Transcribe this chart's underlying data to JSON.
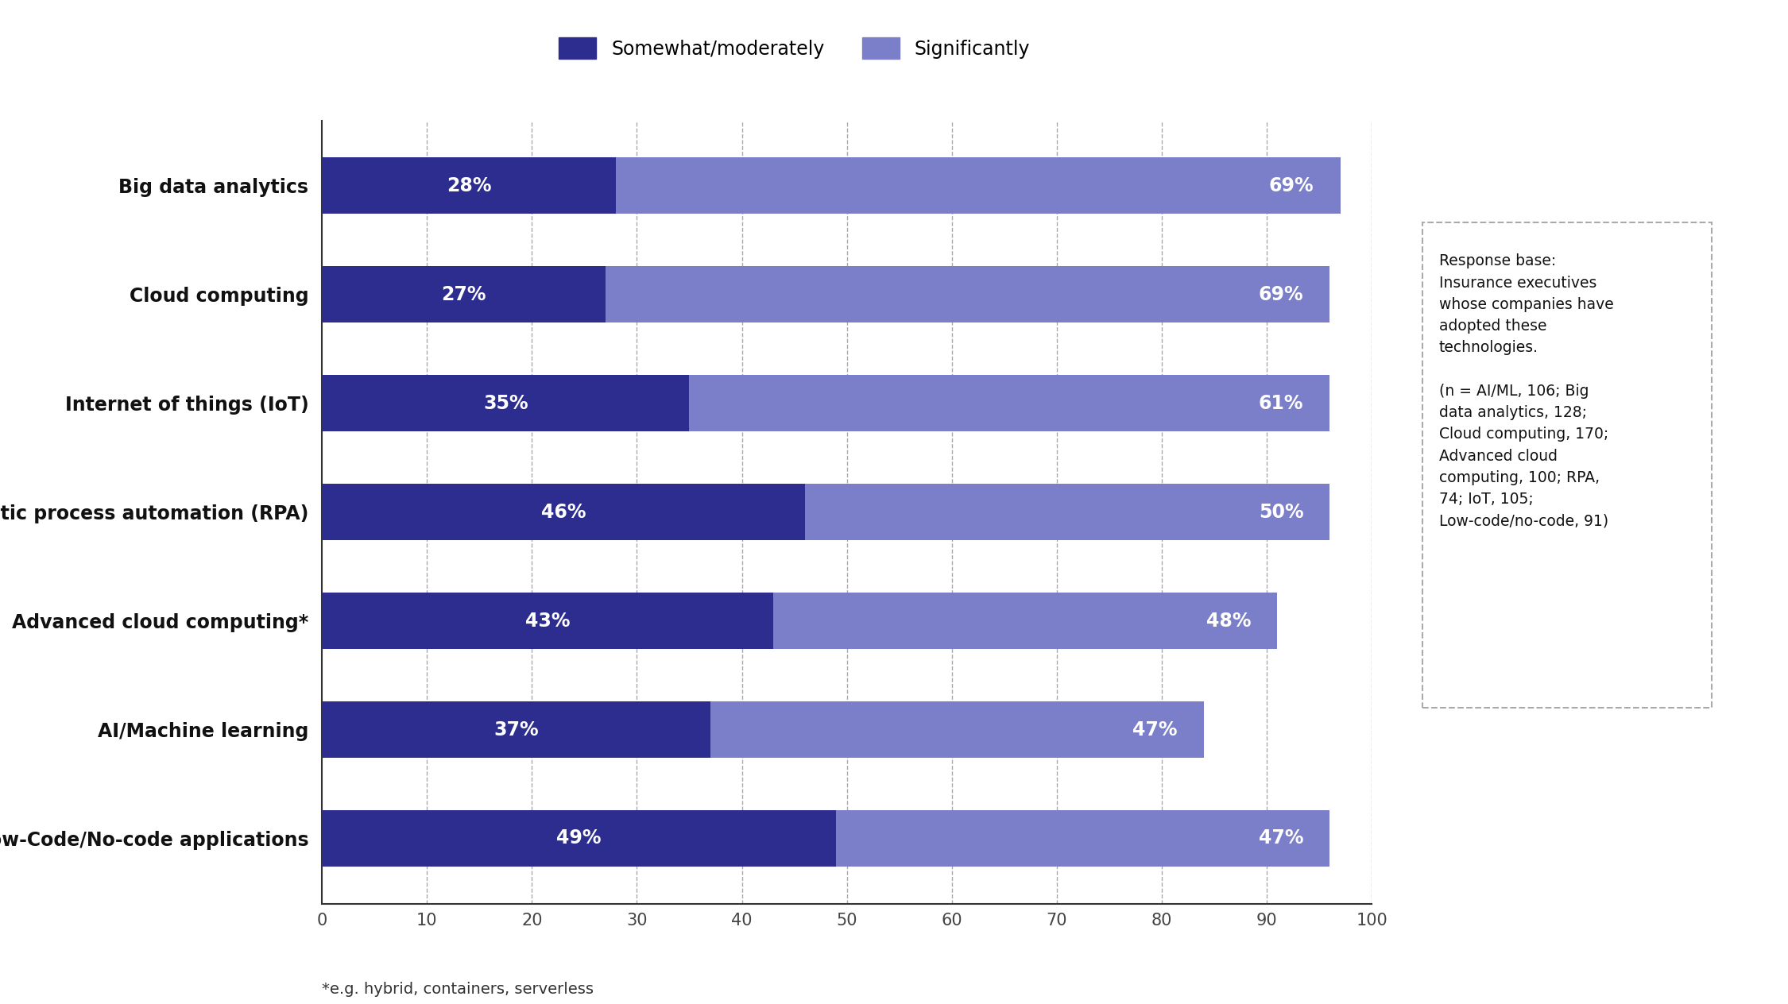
{
  "categories": [
    "Low-Code/No-code applications",
    "AI/Machine learning",
    "Advanced cloud computing*",
    "Robotic process automation (RPA)",
    "Internet of things (IoT)",
    "Cloud computing",
    "Big data analytics"
  ],
  "somewhat_values": [
    49,
    37,
    43,
    46,
    35,
    27,
    28
  ],
  "significant_values": [
    47,
    47,
    48,
    50,
    61,
    69,
    69
  ],
  "somewhat_color": "#2d2d8f",
  "significant_color": "#7b7ec8",
  "background_color": "#ffffff",
  "xlim": [
    0,
    100
  ],
  "xticks": [
    0,
    10,
    20,
    30,
    40,
    50,
    60,
    70,
    80,
    90,
    100
  ],
  "legend_labels": [
    "Somewhat/moderately",
    "Significantly"
  ],
  "footnote": "*e.g. hybrid, containers, serverless",
  "annotation_text": "Response base:\nInsurance executives\nwhose companies have\nadopted these\ntechnologies.\n\n(n = AI/ML, 106; Big\ndata analytics, 128;\nCloud computing, 170;\nAdvanced cloud\ncomputing, 100; RPA,\n74; IoT, 105;\nLow-code/no-code, 91)"
}
